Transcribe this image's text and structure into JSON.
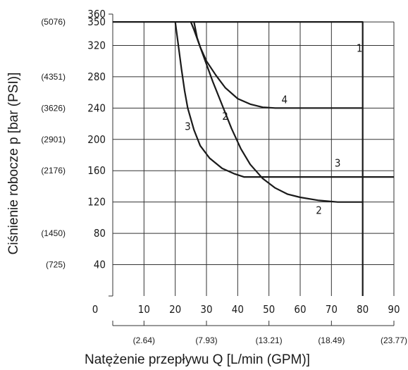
{
  "chart_data": {
    "type": "line",
    "xlabel": "Natężenie przepływu Q  [L/min (GPM)]",
    "ylabel": "Ciśnienie robocze p [bar (PSI)]",
    "xlim": [
      0,
      90
    ],
    "ylim": [
      0,
      360
    ],
    "grid": true,
    "x_ticks": [
      0,
      10,
      20,
      30,
      40,
      50,
      60,
      70,
      80,
      90
    ],
    "x_tick_labels": [
      "0",
      "10",
      "20",
      "30",
      "40",
      "50",
      "60",
      "70",
      "80",
      "90"
    ],
    "y_ticks": [
      40,
      80,
      120,
      160,
      200,
      240,
      280,
      320,
      350,
      360
    ],
    "y_tick_labels": [
      "40",
      "80",
      "120",
      "160",
      "200",
      "240",
      "280",
      "320",
      "350",
      "360"
    ],
    "gpm_ticks": [
      10,
      30,
      50,
      70,
      90
    ],
    "gpm_labels": [
      "(2.64)",
      "(7.93)",
      "(13.21)",
      "(18.49)",
      "(23.77)"
    ],
    "psi_ticks": [
      40,
      80,
      120,
      160,
      200,
      240,
      280,
      320,
      350
    ],
    "psi_labels": [
      "(725)",
      "(1450)",
      "(2176)",
      "(2901)",
      "(3626)",
      "(4351)",
      "(5076)"
    ],
    "psi_label_positions": [
      40,
      80,
      160,
      200,
      240,
      280,
      350
    ],
    "series": [
      {
        "name": "1",
        "values": [
          [
            0,
            350
          ],
          [
            80,
            350
          ],
          [
            80,
            0
          ]
        ],
        "label_at": [
          79,
          312
        ]
      },
      {
        "name": "2",
        "values": [
          [
            25,
            350
          ],
          [
            26,
            340
          ],
          [
            28,
            318
          ],
          [
            30,
            296
          ],
          [
            32,
            274
          ],
          [
            35,
            244
          ],
          [
            38,
            214
          ],
          [
            41,
            188
          ],
          [
            44,
            168
          ],
          [
            48,
            150
          ],
          [
            52,
            138
          ],
          [
            56,
            130
          ],
          [
            60,
            126
          ],
          [
            66,
            122
          ],
          [
            72,
            120
          ],
          [
            80,
            120
          ]
        ],
        "label_at": [
          [
            36,
            225
          ],
          [
            66,
            105
          ]
        ]
      },
      {
        "name": "3",
        "values": [
          [
            20,
            350
          ],
          [
            21,
            320
          ],
          [
            22,
            290
          ],
          [
            23,
            262
          ],
          [
            24,
            240
          ],
          [
            26,
            212
          ],
          [
            28,
            192
          ],
          [
            31,
            176
          ],
          [
            35,
            163
          ],
          [
            39,
            156
          ],
          [
            42,
            152
          ],
          [
            60,
            152
          ],
          [
            90,
            152
          ]
        ],
        "label_at": [
          [
            24,
            212
          ],
          [
            72,
            165
          ]
        ]
      },
      {
        "name": "4",
        "values": [
          [
            26,
            350
          ],
          [
            27,
            330
          ],
          [
            28,
            318
          ],
          [
            30,
            300
          ],
          [
            33,
            282
          ],
          [
            36,
            266
          ],
          [
            40,
            252
          ],
          [
            44,
            245
          ],
          [
            48,
            241
          ],
          [
            52,
            240
          ],
          [
            80,
            240
          ]
        ],
        "label_at": [
          55,
          246
        ]
      }
    ]
  }
}
